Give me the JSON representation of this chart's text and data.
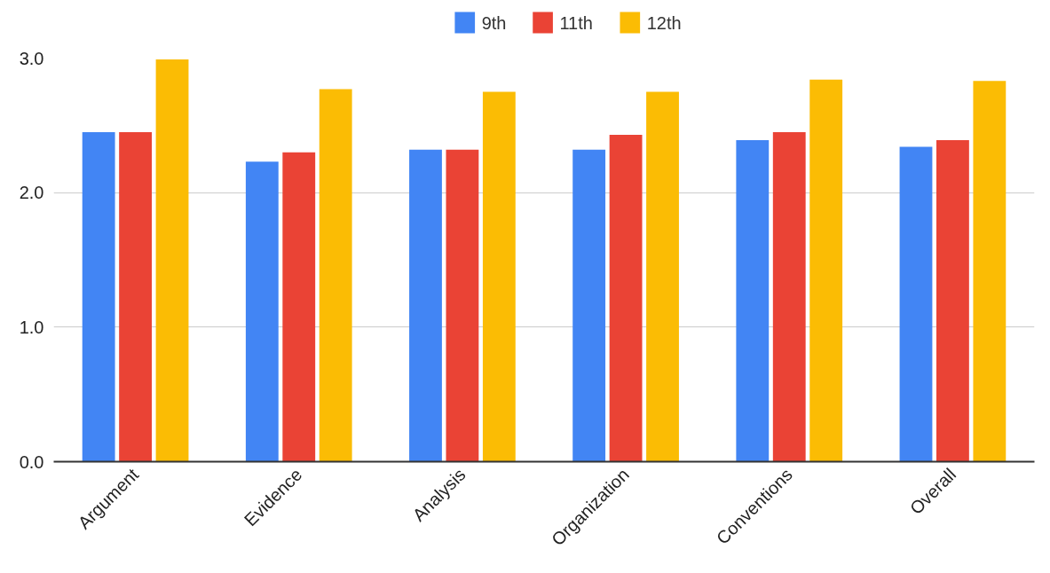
{
  "chart_data": {
    "type": "bar",
    "categories": [
      "Argument",
      "Evidence",
      "Analysis",
      "Organization",
      "Conventions",
      "Overall"
    ],
    "series": [
      {
        "name": "9th",
        "color": "#4285f4",
        "values": [
          2.45,
          2.23,
          2.32,
          2.32,
          2.39,
          2.34
        ]
      },
      {
        "name": "11th",
        "color": "#ea4335",
        "values": [
          2.45,
          2.3,
          2.32,
          2.43,
          2.45,
          2.39
        ]
      },
      {
        "name": "12th",
        "color": "#fbbc04",
        "values": [
          2.99,
          2.77,
          2.75,
          2.75,
          2.84,
          2.83
        ]
      }
    ],
    "ylim": [
      0,
      3
    ],
    "yticks": [
      {
        "value": 0,
        "label": "0.0"
      },
      {
        "value": 1,
        "label": "1.0"
      },
      {
        "value": 2,
        "label": "2.0"
      },
      {
        "value": 3,
        "label": "3.0"
      }
    ],
    "grid": "y",
    "legend": "top"
  }
}
